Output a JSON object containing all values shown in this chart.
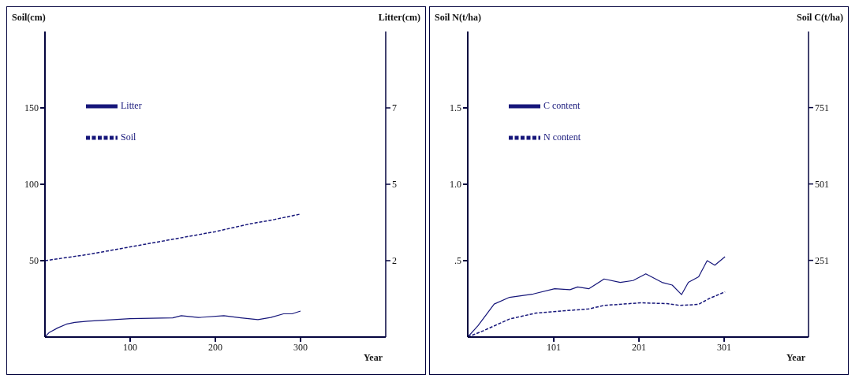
{
  "chart_data": [
    {
      "type": "line",
      "xlabel": "Year",
      "ylabel": "Soil(cm)",
      "y2label": "Litter(cm)",
      "xlim": [
        0,
        400
      ],
      "xticks": [
        100,
        200,
        300
      ],
      "ylim": [
        0,
        200
      ],
      "yticks": [
        50,
        100,
        150
      ],
      "y2lim": [
        0,
        10
      ],
      "y2ticks": [
        {
          "value": 2.5,
          "label": "2"
        },
        {
          "value": 5,
          "label": "5"
        },
        {
          "value": 7.5,
          "label": "7"
        }
      ],
      "legend": "top left",
      "series": [
        {
          "name": "Litter",
          "color": "#16167a",
          "axis": "y2",
          "line_style": "solid",
          "x": [
            0,
            5,
            15,
            25,
            35,
            50,
            100,
            150,
            160,
            180,
            210,
            230,
            250,
            265,
            280,
            290,
            300
          ],
          "values": [
            0,
            0.15,
            0.3,
            0.42,
            0.48,
            0.52,
            0.6,
            0.63,
            0.7,
            0.64,
            0.7,
            0.63,
            0.57,
            0.64,
            0.76,
            0.76,
            0.85
          ]
        },
        {
          "name": "Soil",
          "color": "#16167a",
          "line_style": "dashed",
          "x": [
            0,
            50,
            100,
            150,
            200,
            240,
            270,
            300
          ],
          "values": [
            50,
            54,
            59,
            64,
            69,
            74,
            77,
            80.5
          ]
        }
      ]
    },
    {
      "type": "line",
      "xlabel": "Year",
      "ylabel": "Soil N(t/ha)",
      "y2label": "Soil C(t/ha)",
      "xlim": [
        0,
        400
      ],
      "xticks": [
        101,
        201,
        301
      ],
      "ylim": [
        0,
        2
      ],
      "yticks": [
        {
          "value": 0.5,
          "label": ".5"
        },
        {
          "value": 1,
          "label": "1.0"
        },
        1.5
      ],
      "y2lim": [
        0,
        1000
      ],
      "y2ticks": [
        251,
        501,
        751
      ],
      "legend": "top left",
      "series": [
        {
          "name": "C content",
          "color": "#16167a",
          "axis": "y2",
          "line_style": "solid",
          "x": [
            0,
            12,
            31,
            49,
            77,
            102,
            120,
            129,
            142,
            160,
            179,
            194,
            209,
            228,
            240,
            251,
            259,
            271,
            281,
            290,
            302
          ],
          "values": [
            0,
            37,
            108,
            130,
            141,
            158,
            155,
            164,
            158,
            190,
            179,
            185,
            207,
            179,
            170,
            139,
            179,
            197,
            250,
            235,
            263
          ]
        },
        {
          "name": "N content",
          "color": "#16167a",
          "line_style": "dashed",
          "x": [
            0,
            17,
            49,
            80,
            111,
            142,
            160,
            203,
            234,
            249,
            271,
            283,
            302
          ],
          "values": [
            0,
            0.038,
            0.118,
            0.157,
            0.171,
            0.184,
            0.207,
            0.224,
            0.219,
            0.207,
            0.214,
            0.251,
            0.296
          ]
        }
      ]
    }
  ]
}
